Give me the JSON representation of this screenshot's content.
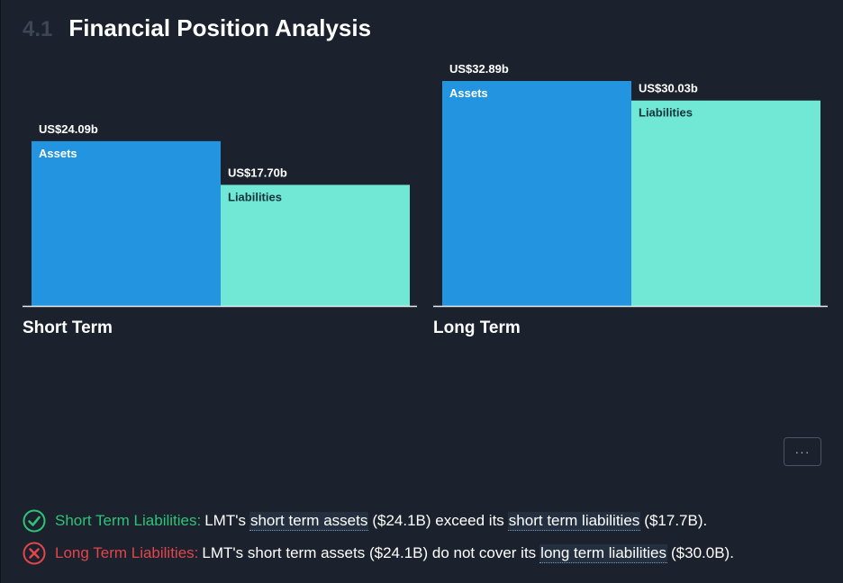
{
  "section": {
    "number": "4.1",
    "title": "Financial Position Analysis"
  },
  "colors": {
    "background": "#1b222d",
    "assets": "#2394df",
    "liabilities": "#71e7d6",
    "pass": "#2fc276",
    "fail": "#e2454b"
  },
  "chart_data": [
    {
      "type": "bar",
      "title": "Short Term",
      "categories": [
        "Assets",
        "Liabilities"
      ],
      "values": [
        24.09,
        17.7
      ],
      "value_labels": [
        "US$24.09b",
        "US$17.70b"
      ],
      "unit": "US$ billions",
      "ylim": [
        0,
        32.89
      ],
      "grid": false,
      "legend": "none"
    },
    {
      "type": "bar",
      "title": "Long Term",
      "categories": [
        "Assets",
        "Liabilities"
      ],
      "values": [
        32.89,
        30.03
      ],
      "value_labels": [
        "US$32.89b",
        "US$30.03b"
      ],
      "unit": "US$ billions",
      "ylim": [
        0,
        32.89
      ],
      "grid": false,
      "legend": "none"
    }
  ],
  "more_button": {
    "icon": "ellipsis-icon",
    "label": "···"
  },
  "checks": [
    {
      "status": "pass",
      "icon": "check-circle-icon",
      "label": "Short Term Liabilities:",
      "text_1": "LMT's",
      "link_1": "short term assets",
      "text_2": "($24.1B) exceed its",
      "link_2": "short term liabilities",
      "text_3": "($17.7B)."
    },
    {
      "status": "fail",
      "icon": "x-circle-icon",
      "label": "Long Term Liabilities:",
      "text_1": "LMT's short term assets ($24.1B) do not cover its",
      "link_1": "long term liabilities",
      "text_2": "($30.0B)."
    }
  ]
}
